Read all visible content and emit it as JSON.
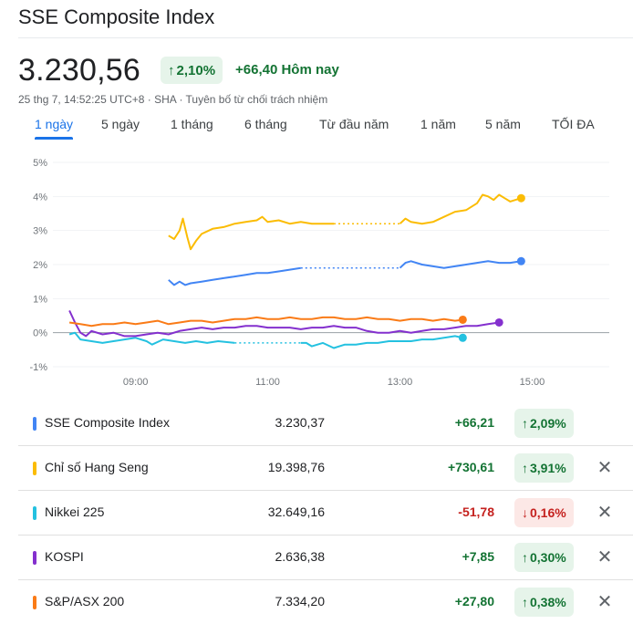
{
  "header": {
    "title": "SSE Composite Index",
    "price": "3.230,56",
    "change_pct": "2,10%",
    "change_arrow": "↑",
    "change_abs": "+66,40 Hôm nay",
    "meta": "25 thg 7, 14:52:25 UTC+8 · SHA · Tuyên bố từ chối trách nhiệm"
  },
  "tabs": [
    {
      "label": "1 ngày",
      "active": true
    },
    {
      "label": "5 ngày"
    },
    {
      "label": "1 tháng"
    },
    {
      "label": "6 tháng"
    },
    {
      "label": "Từ đầu năm"
    },
    {
      "label": "1 năm"
    },
    {
      "label": "5 năm"
    },
    {
      "label": "TỐI ĐA"
    }
  ],
  "chart_data": {
    "type": "line",
    "title": "",
    "xlabel": "",
    "ylabel": "",
    "y_unit": "%",
    "ylim": [
      -1,
      5
    ],
    "xlim": [
      "07:45",
      "16:10"
    ],
    "grid": "horizontal",
    "baseline": 0,
    "x_ticks": [
      "09:00",
      "11:00",
      "13:00",
      "15:00"
    ],
    "y_ticks": [
      "5%",
      "4%",
      "3%",
      "2%",
      "1%",
      "0%",
      "-1%"
    ],
    "series": [
      {
        "name": "SSE Composite Index",
        "color": "#4285f4",
        "gap": [
          "11:30",
          "13:00"
        ],
        "points": [
          [
            "09:30",
            1.55
          ],
          [
            "09:35",
            1.4
          ],
          [
            "09:40",
            1.5
          ],
          [
            "09:45",
            1.4
          ],
          [
            "09:50",
            1.45
          ],
          [
            "10:00",
            1.5
          ],
          [
            "10:10",
            1.55
          ],
          [
            "10:20",
            1.6
          ],
          [
            "10:30",
            1.65
          ],
          [
            "10:40",
            1.7
          ],
          [
            "10:50",
            1.75
          ],
          [
            "11:00",
            1.75
          ],
          [
            "11:10",
            1.8
          ],
          [
            "11:20",
            1.85
          ],
          [
            "11:30",
            1.9
          ],
          [
            "13:00",
            1.9
          ],
          [
            "13:05",
            2.05
          ],
          [
            "13:10",
            2.1
          ],
          [
            "13:20",
            2.0
          ],
          [
            "13:30",
            1.95
          ],
          [
            "13:40",
            1.9
          ],
          [
            "13:50",
            1.95
          ],
          [
            "14:00",
            2.0
          ],
          [
            "14:10",
            2.05
          ],
          [
            "14:20",
            2.1
          ],
          [
            "14:30",
            2.05
          ],
          [
            "14:40",
            2.05
          ],
          [
            "14:50",
            2.1
          ]
        ]
      },
      {
        "name": "Chỉ số Hang Seng",
        "color": "#fbbc04",
        "gap": [
          "12:00",
          "13:00"
        ],
        "points": [
          [
            "09:30",
            2.85
          ],
          [
            "09:35",
            2.75
          ],
          [
            "09:40",
            3.0
          ],
          [
            "09:43",
            3.35
          ],
          [
            "09:47",
            2.8
          ],
          [
            "09:50",
            2.45
          ],
          [
            "09:55",
            2.7
          ],
          [
            "10:00",
            2.9
          ],
          [
            "10:10",
            3.05
          ],
          [
            "10:20",
            3.1
          ],
          [
            "10:30",
            3.2
          ],
          [
            "10:40",
            3.25
          ],
          [
            "10:50",
            3.3
          ],
          [
            "10:55",
            3.4
          ],
          [
            "11:00",
            3.25
          ],
          [
            "11:10",
            3.3
          ],
          [
            "11:20",
            3.2
          ],
          [
            "11:30",
            3.25
          ],
          [
            "11:40",
            3.2
          ],
          [
            "11:50",
            3.2
          ],
          [
            "12:00",
            3.2
          ],
          [
            "13:00",
            3.2
          ],
          [
            "13:05",
            3.35
          ],
          [
            "13:10",
            3.25
          ],
          [
            "13:20",
            3.2
          ],
          [
            "13:30",
            3.25
          ],
          [
            "13:40",
            3.4
          ],
          [
            "13:50",
            3.55
          ],
          [
            "14:00",
            3.6
          ],
          [
            "14:10",
            3.8
          ],
          [
            "14:15",
            4.05
          ],
          [
            "14:20",
            4.0
          ],
          [
            "14:25",
            3.9
          ],
          [
            "14:30",
            4.05
          ],
          [
            "14:35",
            3.95
          ],
          [
            "14:40",
            3.85
          ],
          [
            "14:45",
            3.9
          ],
          [
            "14:50",
            3.95
          ]
        ]
      },
      {
        "name": "Nikkei 225",
        "color": "#24c1e0",
        "gap": [
          "10:30",
          "11:30"
        ],
        "points": [
          [
            "08:00",
            -0.05
          ],
          [
            "08:05",
            0.0
          ],
          [
            "08:10",
            -0.2
          ],
          [
            "08:20",
            -0.25
          ],
          [
            "08:30",
            -0.3
          ],
          [
            "08:40",
            -0.25
          ],
          [
            "08:50",
            -0.2
          ],
          [
            "09:00",
            -0.15
          ],
          [
            "09:10",
            -0.25
          ],
          [
            "09:15",
            -0.35
          ],
          [
            "09:25",
            -0.2
          ],
          [
            "09:35",
            -0.25
          ],
          [
            "09:45",
            -0.3
          ],
          [
            "09:55",
            -0.25
          ],
          [
            "10:05",
            -0.3
          ],
          [
            "10:15",
            -0.25
          ],
          [
            "10:30",
            -0.3
          ],
          [
            "11:30",
            -0.3
          ],
          [
            "11:35",
            -0.3
          ],
          [
            "11:40",
            -0.4
          ],
          [
            "11:50",
            -0.3
          ],
          [
            "12:00",
            -0.45
          ],
          [
            "12:10",
            -0.35
          ],
          [
            "12:20",
            -0.35
          ],
          [
            "12:30",
            -0.3
          ],
          [
            "12:40",
            -0.3
          ],
          [
            "12:50",
            -0.25
          ],
          [
            "13:00",
            -0.25
          ],
          [
            "13:10",
            -0.25
          ],
          [
            "13:20",
            -0.2
          ],
          [
            "13:30",
            -0.2
          ],
          [
            "13:40",
            -0.15
          ],
          [
            "13:50",
            -0.1
          ],
          [
            "13:57",
            -0.15
          ]
        ]
      },
      {
        "name": "KOSPI",
        "color": "#8430ce",
        "points": [
          [
            "08:00",
            0.65
          ],
          [
            "08:05",
            0.3
          ],
          [
            "08:10",
            0.0
          ],
          [
            "08:15",
            -0.1
          ],
          [
            "08:20",
            0.05
          ],
          [
            "08:30",
            -0.05
          ],
          [
            "08:40",
            0.0
          ],
          [
            "08:50",
            -0.1
          ],
          [
            "09:00",
            -0.1
          ],
          [
            "09:10",
            -0.05
          ],
          [
            "09:20",
            0.0
          ],
          [
            "09:30",
            -0.05
          ],
          [
            "09:40",
            0.05
          ],
          [
            "09:50",
            0.1
          ],
          [
            "10:00",
            0.15
          ],
          [
            "10:10",
            0.1
          ],
          [
            "10:20",
            0.15
          ],
          [
            "10:30",
            0.15
          ],
          [
            "10:40",
            0.2
          ],
          [
            "10:50",
            0.2
          ],
          [
            "11:00",
            0.15
          ],
          [
            "11:10",
            0.15
          ],
          [
            "11:20",
            0.15
          ],
          [
            "11:30",
            0.1
          ],
          [
            "11:40",
            0.15
          ],
          [
            "11:50",
            0.15
          ],
          [
            "12:00",
            0.2
          ],
          [
            "12:10",
            0.15
          ],
          [
            "12:20",
            0.15
          ],
          [
            "12:30",
            0.05
          ],
          [
            "12:40",
            0.0
          ],
          [
            "12:50",
            0.0
          ],
          [
            "13:00",
            0.05
          ],
          [
            "13:10",
            0.0
          ],
          [
            "13:20",
            0.05
          ],
          [
            "13:30",
            0.1
          ],
          [
            "13:40",
            0.1
          ],
          [
            "13:50",
            0.15
          ],
          [
            "14:00",
            0.2
          ],
          [
            "14:10",
            0.2
          ],
          [
            "14:20",
            0.25
          ],
          [
            "14:30",
            0.3
          ]
        ]
      },
      {
        "name": "S&P/ASX 200",
        "color": "#fa7b17",
        "points": [
          [
            "08:00",
            0.3
          ],
          [
            "08:10",
            0.25
          ],
          [
            "08:20",
            0.2
          ],
          [
            "08:30",
            0.25
          ],
          [
            "08:40",
            0.25
          ],
          [
            "08:50",
            0.3
          ],
          [
            "09:00",
            0.25
          ],
          [
            "09:10",
            0.3
          ],
          [
            "09:20",
            0.35
          ],
          [
            "09:30",
            0.25
          ],
          [
            "09:40",
            0.3
          ],
          [
            "09:50",
            0.35
          ],
          [
            "10:00",
            0.35
          ],
          [
            "10:10",
            0.3
          ],
          [
            "10:20",
            0.35
          ],
          [
            "10:30",
            0.4
          ],
          [
            "10:40",
            0.4
          ],
          [
            "10:50",
            0.45
          ],
          [
            "11:00",
            0.4
          ],
          [
            "11:10",
            0.4
          ],
          [
            "11:20",
            0.45
          ],
          [
            "11:30",
            0.4
          ],
          [
            "11:40",
            0.4
          ],
          [
            "11:50",
            0.45
          ],
          [
            "12:00",
            0.45
          ],
          [
            "12:10",
            0.4
          ],
          [
            "12:20",
            0.4
          ],
          [
            "12:30",
            0.45
          ],
          [
            "12:40",
            0.4
          ],
          [
            "12:50",
            0.4
          ],
          [
            "13:00",
            0.35
          ],
          [
            "13:10",
            0.4
          ],
          [
            "13:20",
            0.4
          ],
          [
            "13:30",
            0.35
          ],
          [
            "13:40",
            0.4
          ],
          [
            "13:50",
            0.35
          ],
          [
            "13:57",
            0.38
          ]
        ]
      }
    ]
  },
  "table": {
    "rows": [
      {
        "name": "SSE Composite Index",
        "color": "#4285f4",
        "value": "3.230,37",
        "change": "+66,21",
        "pct": "2,09%",
        "dir": "up",
        "removable": false
      },
      {
        "name": "Chỉ số Hang Seng",
        "color": "#fbbc04",
        "value": "19.398,76",
        "change": "+730,61",
        "pct": "3,91%",
        "dir": "up",
        "removable": true
      },
      {
        "name": "Nikkei 225",
        "color": "#24c1e0",
        "value": "32.649,16",
        "change": "-51,78",
        "pct": "0,16%",
        "dir": "down",
        "removable": true
      },
      {
        "name": "KOSPI",
        "color": "#8430ce",
        "value": "2.636,38",
        "change": "+7,85",
        "pct": "0,30%",
        "dir": "up",
        "removable": true
      },
      {
        "name": "S&P/ASX 200",
        "color": "#fa7b17",
        "value": "7.334,20",
        "change": "+27,80",
        "pct": "0,38%",
        "dir": "up",
        "removable": true
      }
    ]
  }
}
